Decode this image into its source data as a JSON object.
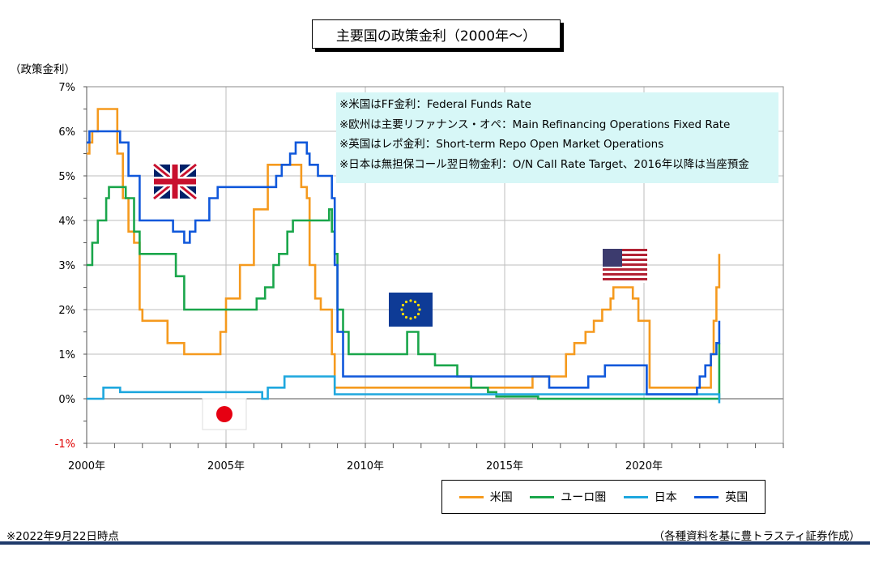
{
  "title": "主要国の政策金利（2000年～）",
  "ylabel": "（政策金利）",
  "notes": [
    "※米国はFF金利：Federal Funds Rate",
    "※欧州は主要リファナンス・オペ：Main Refinancing Operations Fixed Rate",
    "※英国はレポ金利：Short-term Repo Open Market Operations",
    "※日本は無担保コール翌日物金利：O/N Call Rate Target、2016年以降は当座預金"
  ],
  "footnote": "※2022年9月22日時点",
  "source": "（各種資料を基に豊トラスティ証券作成）",
  "chart_data": {
    "type": "line",
    "ylim": [
      -1,
      7
    ],
    "xlim": [
      2000,
      2025
    ],
    "yticks": [
      -1,
      0,
      1,
      2,
      3,
      4,
      5,
      6,
      7
    ],
    "ytick_labels": [
      "-1%",
      "0%",
      "1%",
      "2%",
      "3%",
      "4%",
      "5%",
      "6%",
      "7%"
    ],
    "xticks": [
      2000,
      2005,
      2010,
      2015,
      2020
    ],
    "xtick_labels": [
      "2000年",
      "2005年",
      "2010年",
      "2015年",
      "2020年"
    ],
    "grid": true,
    "legend_position": "bottom-right",
    "flags": [
      "UK",
      "Japan",
      "EU",
      "US"
    ],
    "series": [
      {
        "name": "米国",
        "color": "#f59a1e",
        "x": [
          2000.0,
          2000.1,
          2000.2,
          2000.4,
          2001.0,
          2001.1,
          2001.3,
          2001.5,
          2001.7,
          2001.9,
          2002.0,
          2002.9,
          2003.5,
          2004.5,
          2004.8,
          2005.0,
          2005.5,
          2006.0,
          2006.5,
          2007.6,
          2007.7,
          2007.9,
          2008.0,
          2008.2,
          2008.4,
          2008.8,
          2008.9,
          2009.0,
          2015.9,
          2016.0,
          2016.9,
          2017.2,
          2017.5,
          2017.9,
          2018.2,
          2018.5,
          2018.8,
          2018.9,
          2019.5,
          2019.6,
          2019.8,
          2020.1,
          2020.2,
          2021.9,
          2022.2,
          2022.4,
          2022.5,
          2022.6,
          2022.7
        ],
        "y": [
          5.5,
          5.75,
          6.0,
          6.5,
          6.5,
          5.5,
          4.5,
          3.75,
          3.5,
          2.0,
          1.75,
          1.25,
          1.0,
          1.0,
          1.5,
          2.25,
          3.0,
          4.25,
          5.25,
          5.25,
          4.75,
          4.5,
          3.0,
          2.25,
          2.0,
          1.0,
          0.25,
          0.25,
          0.25,
          0.5,
          0.5,
          1.0,
          1.25,
          1.5,
          1.75,
          2.0,
          2.25,
          2.5,
          2.5,
          2.25,
          1.75,
          1.75,
          0.25,
          0.25,
          0.25,
          1.0,
          1.75,
          2.5,
          3.25
        ]
      },
      {
        "name": "ユーロ圏",
        "color": "#1aa64b",
        "x": [
          2000.0,
          2000.2,
          2000.4,
          2000.7,
          2000.8,
          2001.3,
          2001.4,
          2001.7,
          2001.9,
          2002.9,
          2003.2,
          2003.5,
          2005.0,
          2005.9,
          2006.1,
          2006.4,
          2006.7,
          2006.9,
          2007.2,
          2007.4,
          2008.5,
          2008.7,
          2008.8,
          2008.9,
          2009.0,
          2009.2,
          2009.4,
          2011.3,
          2011.5,
          2011.9,
          2012.5,
          2013.3,
          2013.8,
          2014.4,
          2014.7,
          2016.2,
          2022.5,
          2022.7
        ],
        "y": [
          3.0,
          3.5,
          4.0,
          4.5,
          4.75,
          4.75,
          4.5,
          3.75,
          3.25,
          3.25,
          2.75,
          2.0,
          2.0,
          2.0,
          2.25,
          2.5,
          3.0,
          3.25,
          3.75,
          4.0,
          4.0,
          4.25,
          3.75,
          3.25,
          2.0,
          1.5,
          1.0,
          1.0,
          1.5,
          1.0,
          0.75,
          0.5,
          0.25,
          0.15,
          0.05,
          0.0,
          0.0,
          1.25
        ]
      },
      {
        "name": "日本",
        "color": "#1ea7de",
        "x": [
          2000.0,
          2000.6,
          2001.1,
          2001.2,
          2006.3,
          2006.5,
          2007.1,
          2008.8,
          2008.9,
          2016.1,
          2022.7
        ],
        "y": [
          0.0,
          0.25,
          0.25,
          0.15,
          0.0,
          0.25,
          0.5,
          0.5,
          0.1,
          0.1,
          -0.1
        ]
      },
      {
        "name": "英国",
        "color": "#1058db",
        "x": [
          2000.0,
          2000.1,
          2001.0,
          2001.2,
          2001.5,
          2001.9,
          2003.1,
          2003.5,
          2003.7,
          2003.9,
          2004.4,
          2004.7,
          2006.6,
          2006.8,
          2007.0,
          2007.3,
          2007.5,
          2007.9,
          2008.0,
          2008.3,
          2008.8,
          2008.9,
          2009.0,
          2009.2,
          2016.6,
          2018.0,
          2018.6,
          2020.1,
          2020.2,
          2021.9,
          2022.0,
          2022.2,
          2022.4,
          2022.6,
          2022.7
        ],
        "y": [
          5.75,
          6.0,
          6.0,
          5.75,
          5.0,
          4.0,
          3.75,
          3.5,
          3.75,
          4.0,
          4.5,
          4.75,
          4.75,
          5.0,
          5.25,
          5.5,
          5.75,
          5.5,
          5.25,
          5.0,
          4.5,
          3.0,
          1.5,
          0.5,
          0.25,
          0.5,
          0.75,
          0.1,
          0.1,
          0.25,
          0.5,
          0.75,
          1.0,
          1.25,
          1.75
        ]
      }
    ]
  }
}
